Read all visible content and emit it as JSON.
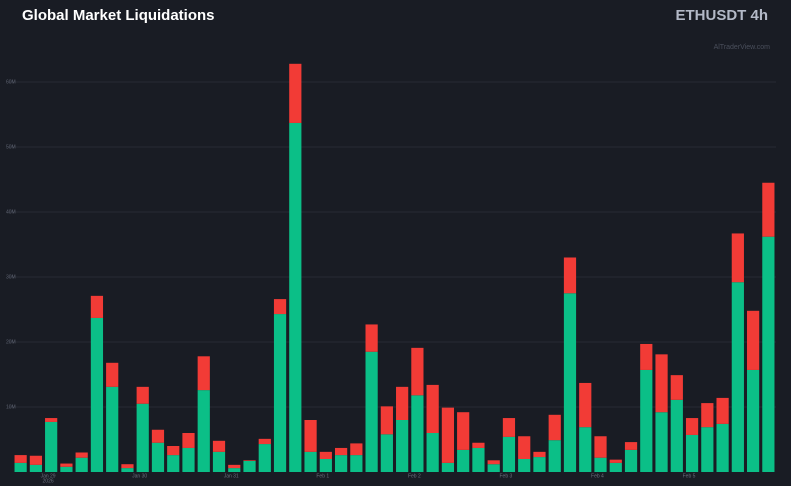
{
  "chart_data": {
    "type": "stacked-bar",
    "title": "Global Market Liquidations",
    "subtitle": "ETHUSDT 4h",
    "watermark": "AlTraderView.com",
    "categories": [
      null,
      null,
      "Jan 29",
      null,
      null,
      null,
      null,
      null,
      "Jan 30",
      null,
      null,
      null,
      null,
      null,
      "Jan 31",
      null,
      null,
      null,
      null,
      null,
      "Feb 1",
      null,
      null,
      null,
      null,
      null,
      "Feb 2",
      null,
      null,
      null,
      null,
      null,
      "Feb 3",
      null,
      null,
      null,
      null,
      null,
      "Feb 4",
      null,
      null,
      null,
      null,
      null,
      "Feb 5",
      null,
      null,
      null,
      null,
      null
    ],
    "year_label": "2026",
    "series": [
      {
        "color": "#0bbf87",
        "values": [
          1.4,
          1.1,
          7.7,
          0.8,
          2.2,
          23.7,
          13.1,
          0.6,
          10.5,
          4.5,
          2.6,
          3.7,
          12.6,
          3.1,
          0.6,
          1.7,
          4.3,
          24.3,
          53.7,
          3.1,
          2.0,
          2.6,
          2.6,
          18.5,
          5.8,
          8.0,
          11.8,
          6.0,
          1.4,
          3.4,
          3.7,
          1.2,
          5.4,
          2.0,
          2.3,
          4.9,
          27.5,
          6.9,
          2.2,
          1.4,
          3.4,
          15.7,
          9.2,
          11.1,
          5.7,
          6.9,
          7.4,
          29.2,
          15.7,
          36.2
        ]
      },
      {
        "color": "#f23b36",
        "values": [
          1.2,
          1.4,
          0.6,
          0.5,
          0.8,
          3.4,
          3.7,
          0.6,
          2.6,
          2.0,
          1.4,
          2.3,
          5.2,
          1.7,
          0.5,
          0.1,
          0.8,
          2.3,
          9.1,
          4.9,
          1.1,
          1.1,
          1.8,
          4.2,
          4.3,
          5.1,
          7.3,
          7.4,
          8.5,
          5.8,
          0.8,
          0.6,
          2.9,
          3.5,
          0.8,
          3.9,
          5.5,
          6.8,
          3.3,
          0.5,
          1.2,
          4.0,
          8.9,
          3.8,
          2.6,
          3.7,
          4.0,
          7.5,
          9.1,
          8.3
        ]
      }
    ],
    "ylim": [
      0,
      63
    ],
    "yticks": [
      {
        "value": 10,
        "label": "10M"
      },
      {
        "value": 20,
        "label": "20M"
      },
      {
        "value": 30,
        "label": "30M"
      },
      {
        "value": 40,
        "label": "40M"
      },
      {
        "value": 50,
        "label": "50M"
      },
      {
        "value": 60,
        "label": "60M"
      }
    ],
    "grid": true
  }
}
